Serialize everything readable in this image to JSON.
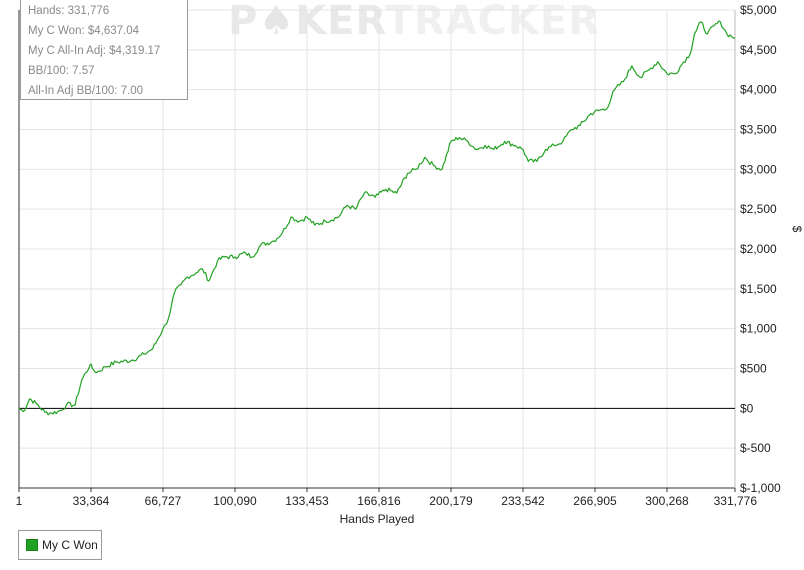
{
  "watermark": {
    "left": "P",
    "mid": "KER",
    "right": "TRACKER"
  },
  "stats": {
    "hands": "Hands: 331,776",
    "won": "My C Won: $4,637.04",
    "allin_adj": "My C All-In Adj: $4,319.17",
    "bb100": "BB/100: 7.57",
    "allin_bb100": "All-In Adj BB/100: 7.00"
  },
  "legend": {
    "label": "My C Won",
    "color": "#22a222"
  },
  "chart_data": {
    "type": "line",
    "title": "",
    "xlabel": "Hands Played",
    "ylabel": "$",
    "xlim": [
      1,
      331776
    ],
    "ylim": [
      -1000,
      5000
    ],
    "x_ticks": [
      1,
      33364,
      66727,
      100090,
      133453,
      166816,
      200179,
      233542,
      266905,
      300268,
      331776
    ],
    "x_tick_labels": [
      "1",
      "33,364",
      "66,727",
      "100,090",
      "133,453",
      "166,816",
      "200,179",
      "233,542",
      "266,905",
      "300,268",
      "331,776"
    ],
    "y_ticks": [
      -1000,
      -500,
      0,
      500,
      1000,
      1500,
      2000,
      2500,
      3000,
      3500,
      4000,
      4500,
      5000
    ],
    "y_tick_labels": [
      "$-1,000",
      "$-500",
      "$0",
      "$500",
      "$1,000",
      "$1,500",
      "$2,000",
      "$2,500",
      "$3,000",
      "$3,500",
      "$4,000",
      "$4,500",
      "$5,000"
    ],
    "grid": true,
    "legend_position": "bottom-left",
    "series": [
      {
        "name": "My C Won",
        "color": "#22a222",
        "x": [
          1,
          2000,
          5000,
          8000,
          12000,
          15000,
          18000,
          20000,
          22000,
          26000,
          29000,
          33000,
          34000,
          36000,
          40000,
          45000,
          52000,
          58000,
          62000,
          64000,
          66727,
          68000,
          70000,
          72000,
          75000,
          78000,
          82000,
          85000,
          88000,
          92000,
          95000,
          100090,
          105000,
          108000,
          112000,
          118000,
          122000,
          126000,
          130000,
          133453,
          137000,
          142000,
          148000,
          152000,
          156000,
          160000,
          165000,
          170000,
          175000,
          180000,
          184000,
          188000,
          192000,
          196000,
          200179,
          204000,
          208000,
          212000,
          216000,
          220000,
          225000,
          230000,
          233542,
          236000,
          240000,
          244000,
          248000,
          252000,
          256000,
          260000,
          265000,
          270000,
          272000,
          276000,
          280000,
          284000,
          288000,
          292000,
          296000,
          300268,
          304000,
          308000,
          311000,
          313000,
          316000,
          319000,
          322000,
          325000,
          328000,
          331776
        ],
        "y": [
          0,
          -40,
          120,
          60,
          -50,
          -60,
          -40,
          -20,
          50,
          40,
          350,
          550,
          500,
          450,
          520,
          580,
          600,
          680,
          750,
          850,
          1000,
          1050,
          1200,
          1450,
          1550,
          1650,
          1700,
          1750,
          1600,
          1850,
          1900,
          1900,
          1950,
          1900,
          2050,
          2100,
          2200,
          2400,
          2350,
          2400,
          2300,
          2350,
          2400,
          2550,
          2500,
          2700,
          2650,
          2750,
          2700,
          2950,
          3000,
          3150,
          3050,
          3000,
          3350,
          3400,
          3350,
          3250,
          3300,
          3250,
          3350,
          3300,
          3250,
          3100,
          3100,
          3250,
          3300,
          3350,
          3500,
          3550,
          3700,
          3750,
          3750,
          4000,
          4100,
          4300,
          4150,
          4250,
          4350,
          4200,
          4200,
          4350,
          4450,
          4700,
          4850,
          4700,
          4800,
          4850,
          4700,
          4650
        ]
      }
    ]
  }
}
